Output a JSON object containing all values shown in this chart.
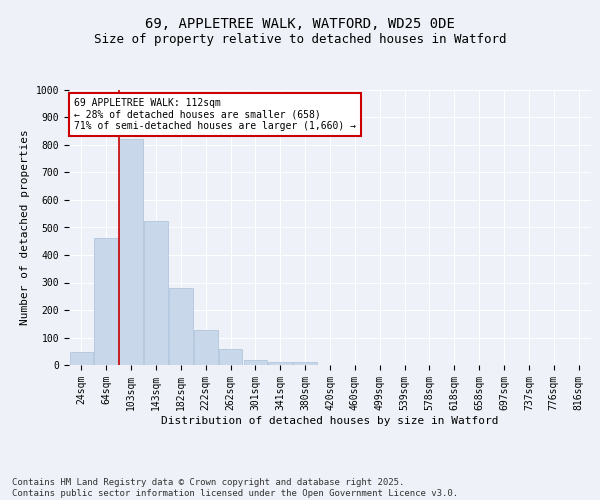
{
  "title1": "69, APPLETREE WALK, WATFORD, WD25 0DE",
  "title2": "Size of property relative to detached houses in Watford",
  "xlabel": "Distribution of detached houses by size in Watford",
  "ylabel": "Number of detached properties",
  "categories": [
    "24sqm",
    "64sqm",
    "103sqm",
    "143sqm",
    "182sqm",
    "222sqm",
    "262sqm",
    "301sqm",
    "341sqm",
    "380sqm",
    "420sqm",
    "460sqm",
    "499sqm",
    "539sqm",
    "578sqm",
    "618sqm",
    "658sqm",
    "697sqm",
    "737sqm",
    "776sqm",
    "816sqm"
  ],
  "values": [
    46,
    462,
    820,
    525,
    280,
    128,
    58,
    20,
    10,
    10,
    0,
    0,
    0,
    0,
    0,
    0,
    0,
    0,
    0,
    0,
    0
  ],
  "bar_color": "#c8d8ea",
  "bar_edgecolor": "#a8c0d8",
  "vline_color": "#cc0000",
  "annotation_text": "69 APPLETREE WALK: 112sqm\n← 28% of detached houses are smaller (658)\n71% of semi-detached houses are larger (1,660) →",
  "annotation_box_color": "#ffffff",
  "annotation_box_edgecolor": "#cc0000",
  "ylim": [
    0,
    1000
  ],
  "yticks": [
    0,
    100,
    200,
    300,
    400,
    500,
    600,
    700,
    800,
    900,
    1000
  ],
  "background_color": "#eef2f8",
  "grid_color": "#ffffff",
  "footer_text": "Contains HM Land Registry data © Crown copyright and database right 2025.\nContains public sector information licensed under the Open Government Licence v3.0.",
  "title_fontsize": 10,
  "subtitle_fontsize": 9,
  "axis_label_fontsize": 8,
  "tick_fontsize": 7,
  "annotation_fontsize": 7,
  "footer_fontsize": 6.5
}
